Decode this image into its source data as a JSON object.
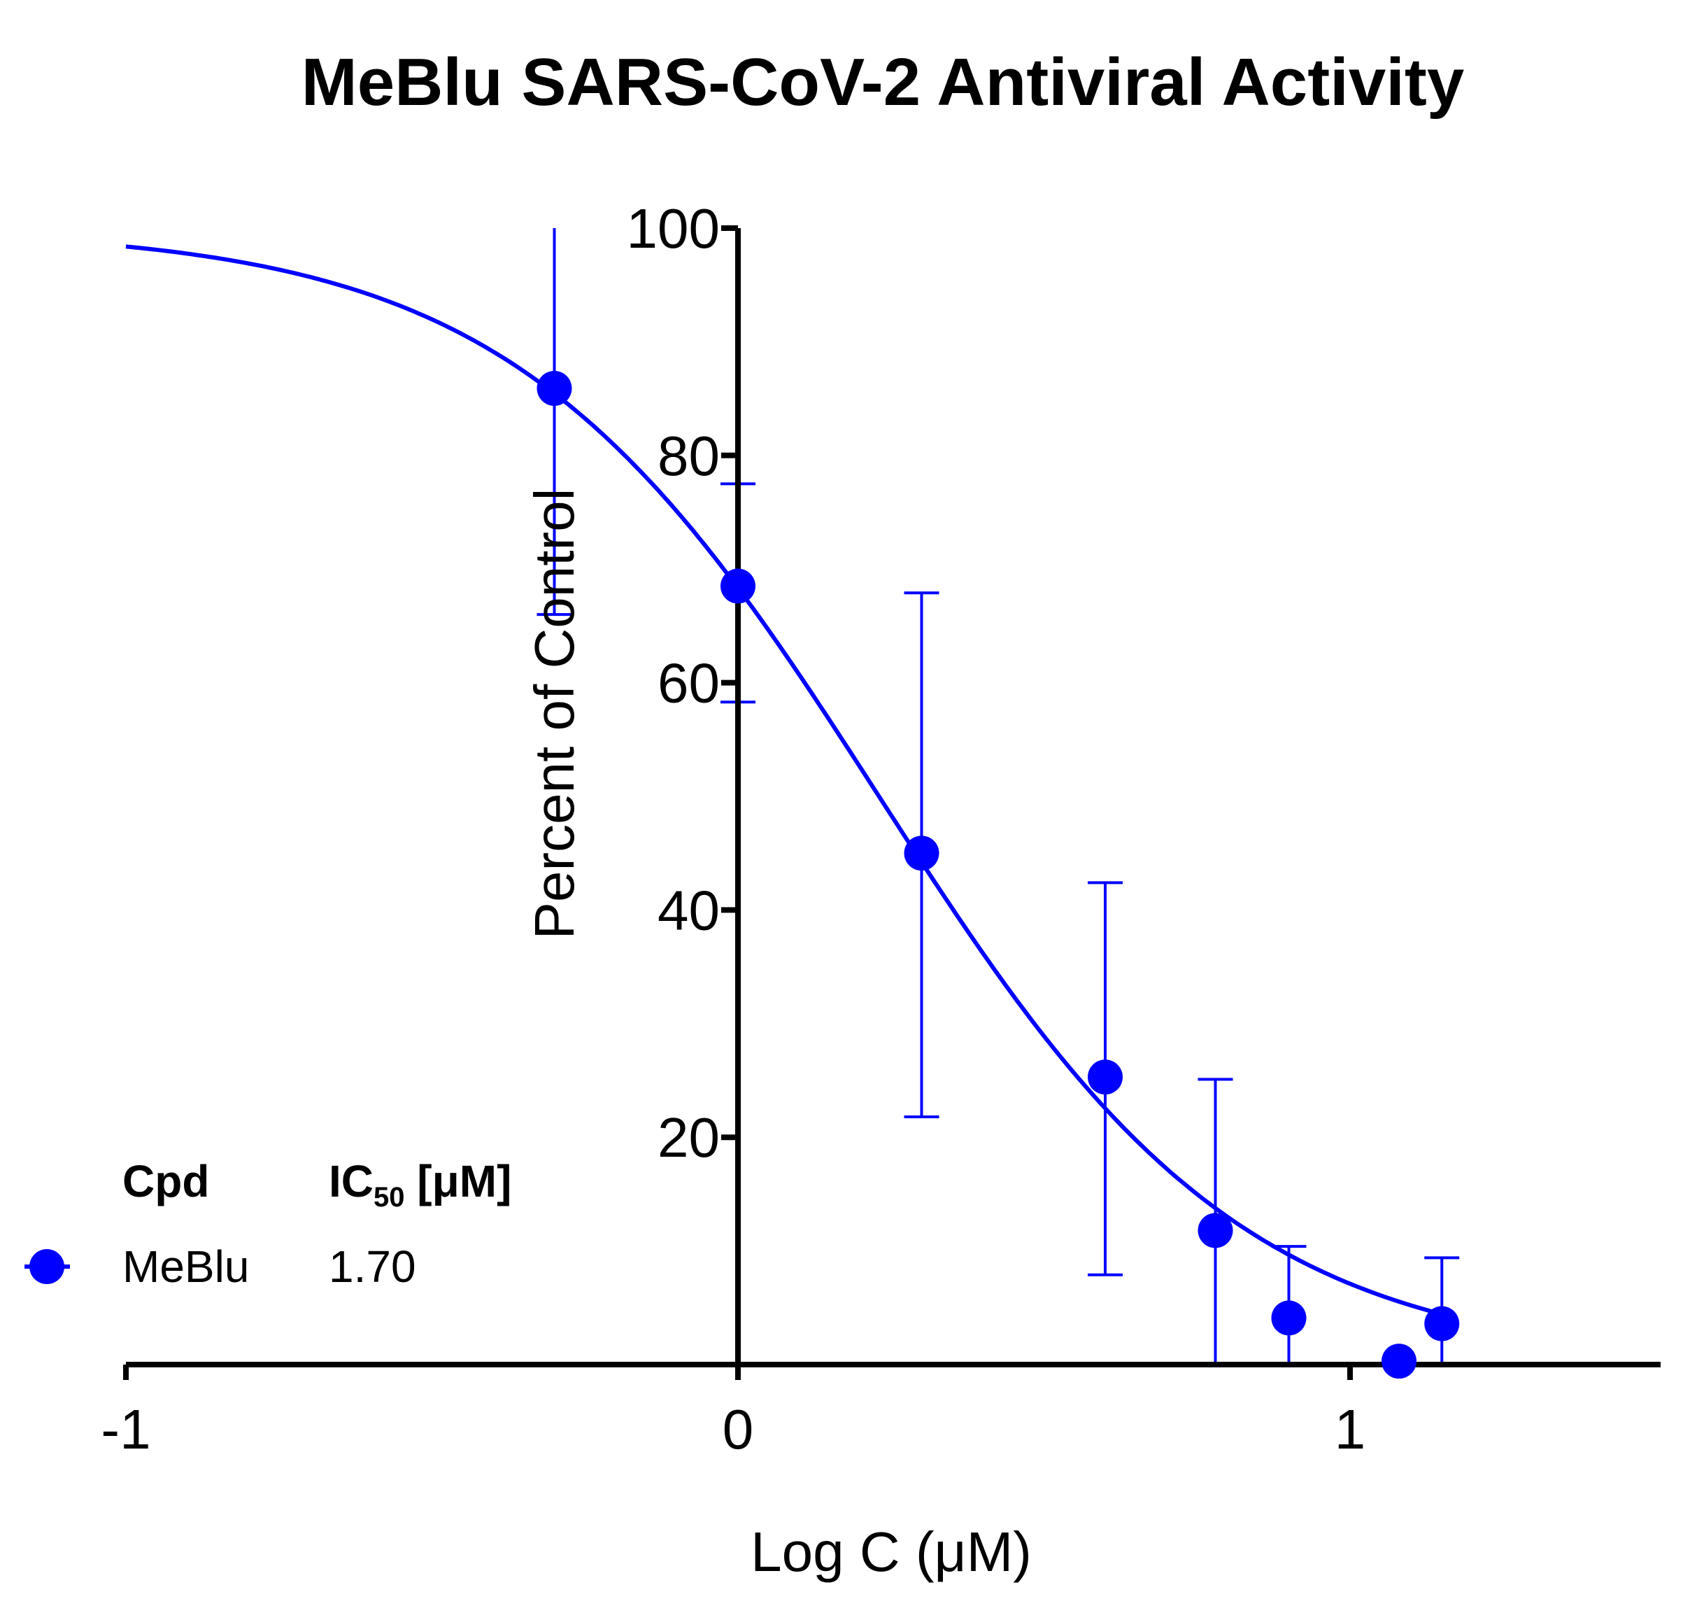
{
  "colors": {
    "series": "#0000ff",
    "axis": "#000000",
    "background": "#ffffff"
  },
  "chart_data": {
    "type": "scatter",
    "title": "MeBlu SARS-CoV-2 Antiviral Activity",
    "xlabel": "Log C (μM)",
    "ylabel": "Percent of Control",
    "xlim": [
      -1,
      1.5
    ],
    "ylim": [
      0,
      100
    ],
    "x_ticks": [
      -1,
      0,
      1
    ],
    "x_tick_labels": [
      "-1",
      "0",
      "1"
    ],
    "y_ticks": [
      20,
      40,
      60,
      80,
      100
    ],
    "y_tick_labels": [
      "20",
      "40",
      "60",
      "80",
      "100"
    ],
    "grid": false,
    "series": [
      {
        "name": "MeBlu",
        "x": [
          -0.3,
          0.0,
          0.3,
          0.6,
          0.78,
          0.9,
          1.08,
          1.15
        ],
        "y": [
          85.9,
          68.5,
          45.0,
          25.3,
          11.8,
          4.1,
          0.3,
          3.6
        ],
        "err_hi": [
          100.0,
          77.5,
          67.9,
          42.4,
          25.1,
          10.4,
          null,
          9.4
        ],
        "err_lo": [
          66.0,
          58.3,
          21.8,
          7.9,
          0.0,
          0.0,
          null,
          0.0
        ]
      }
    ],
    "fit": {
      "type": "logistic",
      "name": "MeBlu fit",
      "top": 100,
      "bottom": 0,
      "log_ic50": 0.2304,
      "hill_slope": 1.45,
      "x_range": [
        -1,
        1.15
      ]
    },
    "legend": {
      "position": "bottom-left",
      "header_cpd": "Cpd",
      "header_ic50_main": "IC",
      "header_ic50_sub": "50",
      "header_ic50_unit": " [μM]",
      "entries": [
        {
          "name": "MeBlu",
          "ic50": "1.70"
        }
      ]
    }
  }
}
